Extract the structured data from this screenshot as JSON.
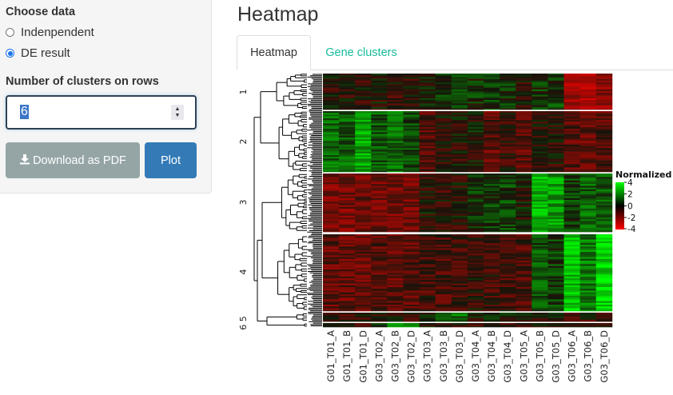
{
  "sidebar": {
    "choose_data_label": "Choose data",
    "options": [
      {
        "label": "Indenpendent",
        "checked": false
      },
      {
        "label": "DE result",
        "checked": true
      }
    ],
    "clusters_label": "Number of clusters on rows",
    "clusters_value": "6",
    "download_label": "Download as PDF",
    "plot_label": "Plot"
  },
  "main": {
    "title": "Heatmap",
    "tabs": [
      {
        "label": "Heatmap",
        "active": true
      },
      {
        "label": "Gene clusters",
        "active": false
      }
    ]
  },
  "heatmap": {
    "columns": [
      "G01_T01_A",
      "G01_T01_B",
      "G01_T01_D",
      "G03_T02_A",
      "G03_T02_B",
      "G03_T02_D",
      "G03_T03_A",
      "G03_T03_B",
      "G03_T03_D",
      "G03_T04_A",
      "G03_T04_B",
      "G03_T04_D",
      "G03_T05_A",
      "G03_T05_B",
      "G03_T05_D",
      "G03_T06_A",
      "G03_T06_B",
      "G03_T06_D"
    ],
    "row_clusters": [
      {
        "label": "1",
        "level": [
          -0.3,
          -0.2,
          -0.3,
          -0.2,
          -0.4,
          -0.3,
          0.1,
          0.3,
          0.4,
          0.3,
          0.6,
          0.3,
          -0.3,
          0.4,
          0.5,
          -1.8,
          -2.0,
          -1.6
        ]
      },
      {
        "label": "2",
        "level": [
          1.1,
          1.0,
          2.0,
          0.9,
          1.2,
          0.7,
          -0.8,
          -0.3,
          -0.2,
          0.0,
          -0.9,
          -0.4,
          -1.0,
          -0.2,
          -0.3,
          -0.9,
          -1.1,
          -0.8
        ]
      },
      {
        "label": "3",
        "level": [
          -1.3,
          -1.2,
          -1.1,
          -1.2,
          -1.3,
          -1.2,
          -0.2,
          -0.4,
          -0.3,
          0.4,
          0.5,
          0.6,
          -0.1,
          2.2,
          1.8,
          0.5,
          1.0,
          0.9
        ]
      },
      {
        "label": "4",
        "level": [
          -1.0,
          -1.0,
          -1.0,
          -0.9,
          -1.0,
          -0.9,
          -0.6,
          -0.7,
          -0.6,
          -0.4,
          -0.5,
          -0.5,
          -0.7,
          0.8,
          0.5,
          2.4,
          1.3,
          2.5
        ]
      },
      {
        "label": "5",
        "level": [
          -0.4,
          -0.3,
          -0.3,
          -0.4,
          -0.2,
          -0.3,
          0.3,
          1.0,
          1.2,
          0.0,
          0.0,
          0.0,
          -0.3,
          -0.2,
          -0.2,
          -0.6,
          -0.5,
          -0.5
        ]
      },
      {
        "label": "6",
        "level": [
          -0.6,
          -0.4,
          -0.2,
          0.3,
          2.0,
          1.7,
          0.0,
          -0.4,
          -0.3,
          -0.4,
          -0.5,
          -0.3,
          -0.6,
          -0.4,
          -0.4,
          -0.2,
          -0.3,
          -0.3
        ]
      }
    ],
    "row_cluster_axis_labels": [
      "1",
      "2",
      "3",
      "4",
      "6 5"
    ],
    "legend": {
      "title": "Normalized",
      "ticks": [
        "4",
        "2",
        "0",
        "-2",
        "-4"
      ],
      "colors": {
        "high": "#00ff00",
        "mid": "#000000",
        "low": "#ff0000"
      }
    }
  }
}
